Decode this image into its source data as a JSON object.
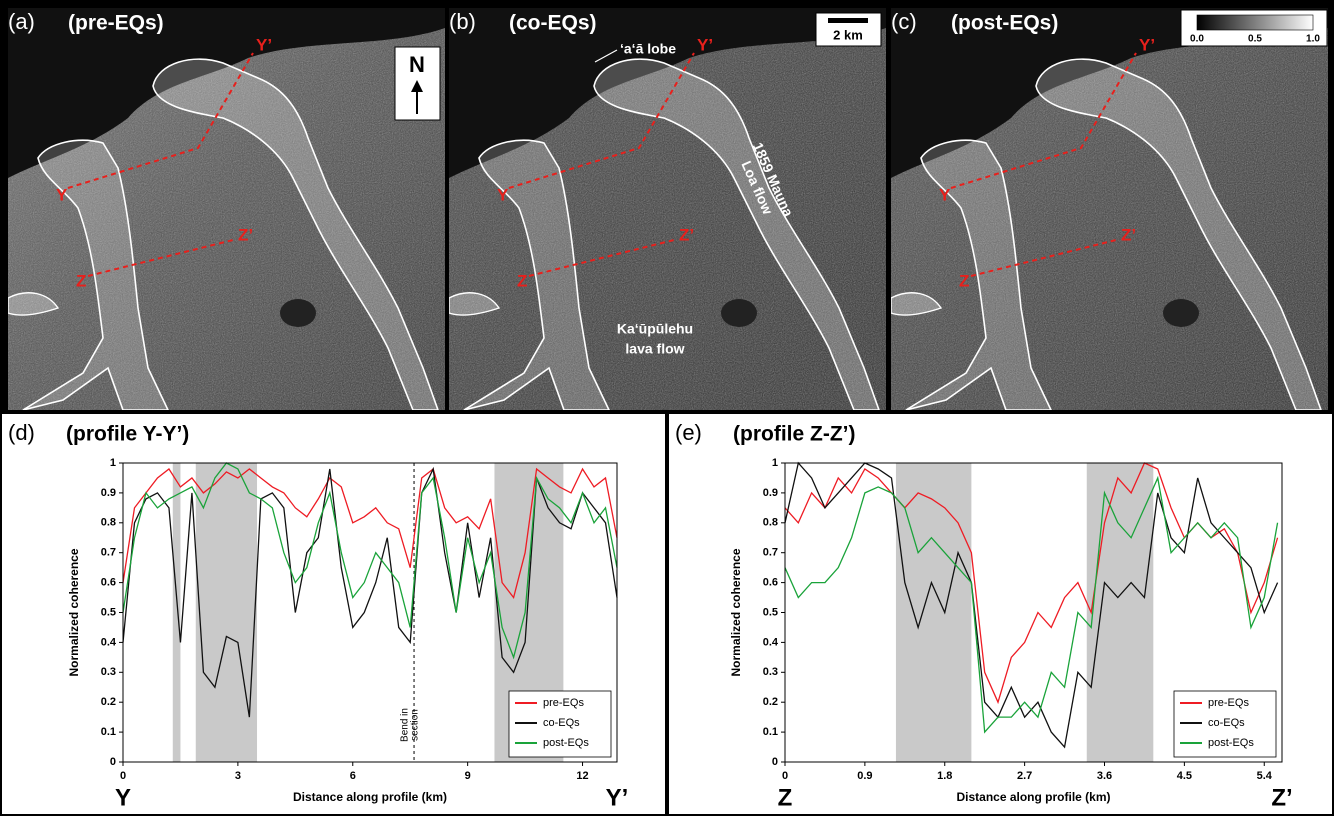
{
  "panels": [
    {
      "label": "(a)",
      "title": "(pre-EQs)",
      "brightness": 0.75
    },
    {
      "label": "(b)",
      "title": "(co-EQs)",
      "brightness": 0.55
    },
    {
      "label": "(c)",
      "title": "(post-EQs)",
      "brightness": 0.62
    }
  ],
  "profile_labels": {
    "Y": "Y",
    "Yp": "Y’",
    "Z": "Z",
    "Zp": "Z’"
  },
  "north": "N",
  "scale_bar": "2 km",
  "colorbar": [
    "0.0",
    "0.5",
    "1.0"
  ],
  "annotations": {
    "lobe": "‘a‘ā lobe",
    "mauna": [
      "1859 Mauna",
      "Loa flow"
    ],
    "kau": [
      "Ka‘ūpūlehu",
      "lava flow"
    ]
  },
  "chart_data": [
    {
      "type": "line",
      "label": "(d)",
      "title": "(profile Y-Y’)",
      "xlabel": "Distance along profile (km)",
      "ylabel": "Normalized coherence",
      "start_label": "Y",
      "end_label": "Y’",
      "xlim": [
        0,
        12.9
      ],
      "xticks": [
        0,
        3,
        6,
        9,
        12
      ],
      "ylim": [
        0,
        1
      ],
      "yticks": [
        0,
        0.1,
        0.2,
        0.3,
        0.4,
        0.5,
        0.6,
        0.7,
        0.8,
        0.9,
        1
      ],
      "shaded": [
        [
          1.3,
          1.5
        ],
        [
          1.9,
          3.5
        ],
        [
          9.7,
          11.5
        ]
      ],
      "bend": {
        "x": 7.6,
        "label": [
          "Bend in",
          "section"
        ]
      },
      "legend": "lower right",
      "x": [
        0,
        0.3,
        0.6,
        0.9,
        1.2,
        1.5,
        1.8,
        2.1,
        2.4,
        2.7,
        3,
        3.3,
        3.6,
        3.9,
        4.2,
        4.5,
        4.8,
        5.1,
        5.4,
        5.7,
        6,
        6.3,
        6.6,
        6.9,
        7.2,
        7.5,
        7.8,
        8.1,
        8.4,
        8.7,
        9,
        9.3,
        9.6,
        9.9,
        10.2,
        10.5,
        10.8,
        11.1,
        11.4,
        11.7,
        12,
        12.3,
        12.6,
        12.9
      ],
      "series": [
        {
          "name": "pre-EQs",
          "color": "#ee1c24",
          "values": [
            0.6,
            0.85,
            0.9,
            0.95,
            0.98,
            0.92,
            0.95,
            0.9,
            0.93,
            0.97,
            0.95,
            0.98,
            0.95,
            0.92,
            0.9,
            0.85,
            0.82,
            0.88,
            0.95,
            0.92,
            0.8,
            0.82,
            0.85,
            0.8,
            0.78,
            0.65,
            0.95,
            0.98,
            0.85,
            0.8,
            0.82,
            0.78,
            0.88,
            0.6,
            0.55,
            0.7,
            0.98,
            0.95,
            0.92,
            0.9,
            0.98,
            0.92,
            0.95,
            0.75
          ]
        },
        {
          "name": "co-EQs",
          "color": "#111111",
          "values": [
            0.4,
            0.8,
            0.88,
            0.9,
            0.85,
            0.4,
            0.9,
            0.3,
            0.25,
            0.42,
            0.4,
            0.15,
            0.88,
            0.9,
            0.85,
            0.5,
            0.7,
            0.75,
            0.98,
            0.65,
            0.45,
            0.5,
            0.6,
            0.75,
            0.45,
            0.4,
            0.9,
            0.98,
            0.7,
            0.5,
            0.8,
            0.55,
            0.75,
            0.35,
            0.3,
            0.4,
            0.95,
            0.85,
            0.8,
            0.78,
            0.9,
            0.85,
            0.8,
            0.55
          ]
        },
        {
          "name": "post-EQs",
          "color": "#1aa33a",
          "values": [
            0.5,
            0.75,
            0.9,
            0.85,
            0.88,
            0.9,
            0.92,
            0.85,
            0.95,
            1.0,
            0.98,
            0.9,
            0.88,
            0.85,
            0.7,
            0.6,
            0.65,
            0.8,
            0.9,
            0.7,
            0.55,
            0.6,
            0.7,
            0.65,
            0.6,
            0.45,
            0.9,
            0.95,
            0.75,
            0.5,
            0.75,
            0.6,
            0.7,
            0.45,
            0.35,
            0.5,
            0.95,
            0.88,
            0.85,
            0.8,
            0.9,
            0.8,
            0.85,
            0.65
          ]
        }
      ]
    },
    {
      "type": "line",
      "label": "(e)",
      "title": "(profile Z-Z’)",
      "xlabel": "Distance along profile (km)",
      "ylabel": "Normalized coherence",
      "start_label": "Z",
      "end_label": "Z’",
      "xlim": [
        0,
        5.6
      ],
      "xticks": [
        0,
        0.9,
        1.8,
        2.7,
        3.6,
        4.5,
        5.4
      ],
      "ylim": [
        0,
        1
      ],
      "yticks": [
        0,
        0.1,
        0.2,
        0.3,
        0.4,
        0.5,
        0.6,
        0.7,
        0.8,
        0.9,
        1
      ],
      "shaded": [
        [
          1.25,
          2.1
        ],
        [
          3.4,
          4.15
        ]
      ],
      "legend": "lower right",
      "x": [
        0,
        0.15,
        0.3,
        0.45,
        0.6,
        0.75,
        0.9,
        1.05,
        1.2,
        1.35,
        1.5,
        1.65,
        1.8,
        1.95,
        2.1,
        2.25,
        2.4,
        2.55,
        2.7,
        2.85,
        3,
        3.15,
        3.3,
        3.45,
        3.6,
        3.75,
        3.9,
        4.05,
        4.2,
        4.35,
        4.5,
        4.65,
        4.8,
        4.95,
        5.1,
        5.25,
        5.4,
        5.55
      ],
      "series": [
        {
          "name": "pre-EQs",
          "color": "#ee1c24",
          "values": [
            0.85,
            0.8,
            0.9,
            0.85,
            0.95,
            0.9,
            0.98,
            0.95,
            0.9,
            0.85,
            0.9,
            0.88,
            0.85,
            0.8,
            0.7,
            0.3,
            0.2,
            0.35,
            0.4,
            0.5,
            0.45,
            0.55,
            0.6,
            0.5,
            0.8,
            0.95,
            0.9,
            1.0,
            0.98,
            0.85,
            0.75,
            0.8,
            0.75,
            0.78,
            0.7,
            0.5,
            0.6,
            0.75
          ]
        },
        {
          "name": "co-EQs",
          "color": "#111111",
          "values": [
            0.8,
            1.0,
            0.95,
            0.85,
            0.9,
            0.95,
            1.0,
            0.98,
            0.95,
            0.6,
            0.45,
            0.6,
            0.5,
            0.7,
            0.6,
            0.2,
            0.15,
            0.25,
            0.15,
            0.2,
            0.1,
            0.05,
            0.3,
            0.25,
            0.6,
            0.55,
            0.6,
            0.55,
            0.9,
            0.75,
            0.7,
            0.95,
            0.8,
            0.75,
            0.7,
            0.65,
            0.5,
            0.6
          ]
        },
        {
          "name": "post-EQs",
          "color": "#1aa33a",
          "values": [
            0.65,
            0.55,
            0.6,
            0.6,
            0.65,
            0.75,
            0.9,
            0.92,
            0.9,
            0.85,
            0.7,
            0.75,
            0.7,
            0.65,
            0.6,
            0.1,
            0.15,
            0.15,
            0.2,
            0.15,
            0.3,
            0.25,
            0.5,
            0.45,
            0.9,
            0.8,
            0.75,
            0.85,
            0.95,
            0.7,
            0.75,
            0.8,
            0.75,
            0.8,
            0.75,
            0.45,
            0.55,
            0.8
          ]
        }
      ]
    }
  ]
}
